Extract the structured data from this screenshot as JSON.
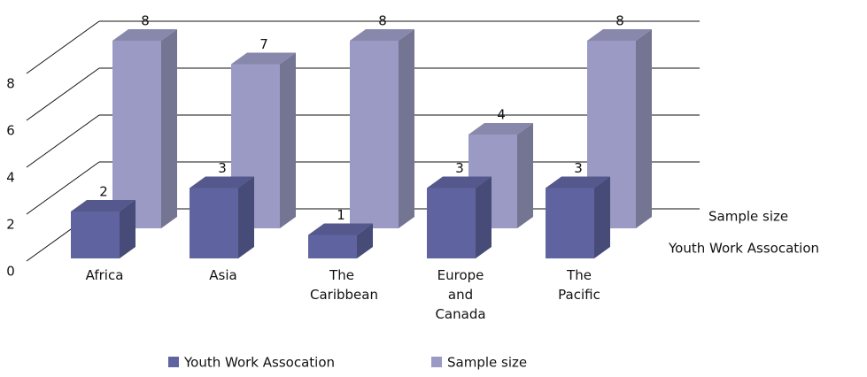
{
  "chart_data": {
    "type": "bar3d",
    "categories": [
      "Africa",
      "Asia",
      "The Caribbean",
      "Europe and Canada",
      "The Pacific"
    ],
    "series": [
      {
        "name": "Youth Work Assocation",
        "color": "#5f64a0",
        "values": [
          2,
          3,
          1,
          3,
          3
        ]
      },
      {
        "name": "Sample size",
        "color": "#9a9ac4",
        "values": [
          8,
          7,
          8,
          4,
          8
        ]
      }
    ],
    "ylim": [
      0,
      8
    ],
    "yticks": [
      0,
      2,
      4,
      6,
      8
    ],
    "grid": true,
    "legend": "bottom"
  }
}
